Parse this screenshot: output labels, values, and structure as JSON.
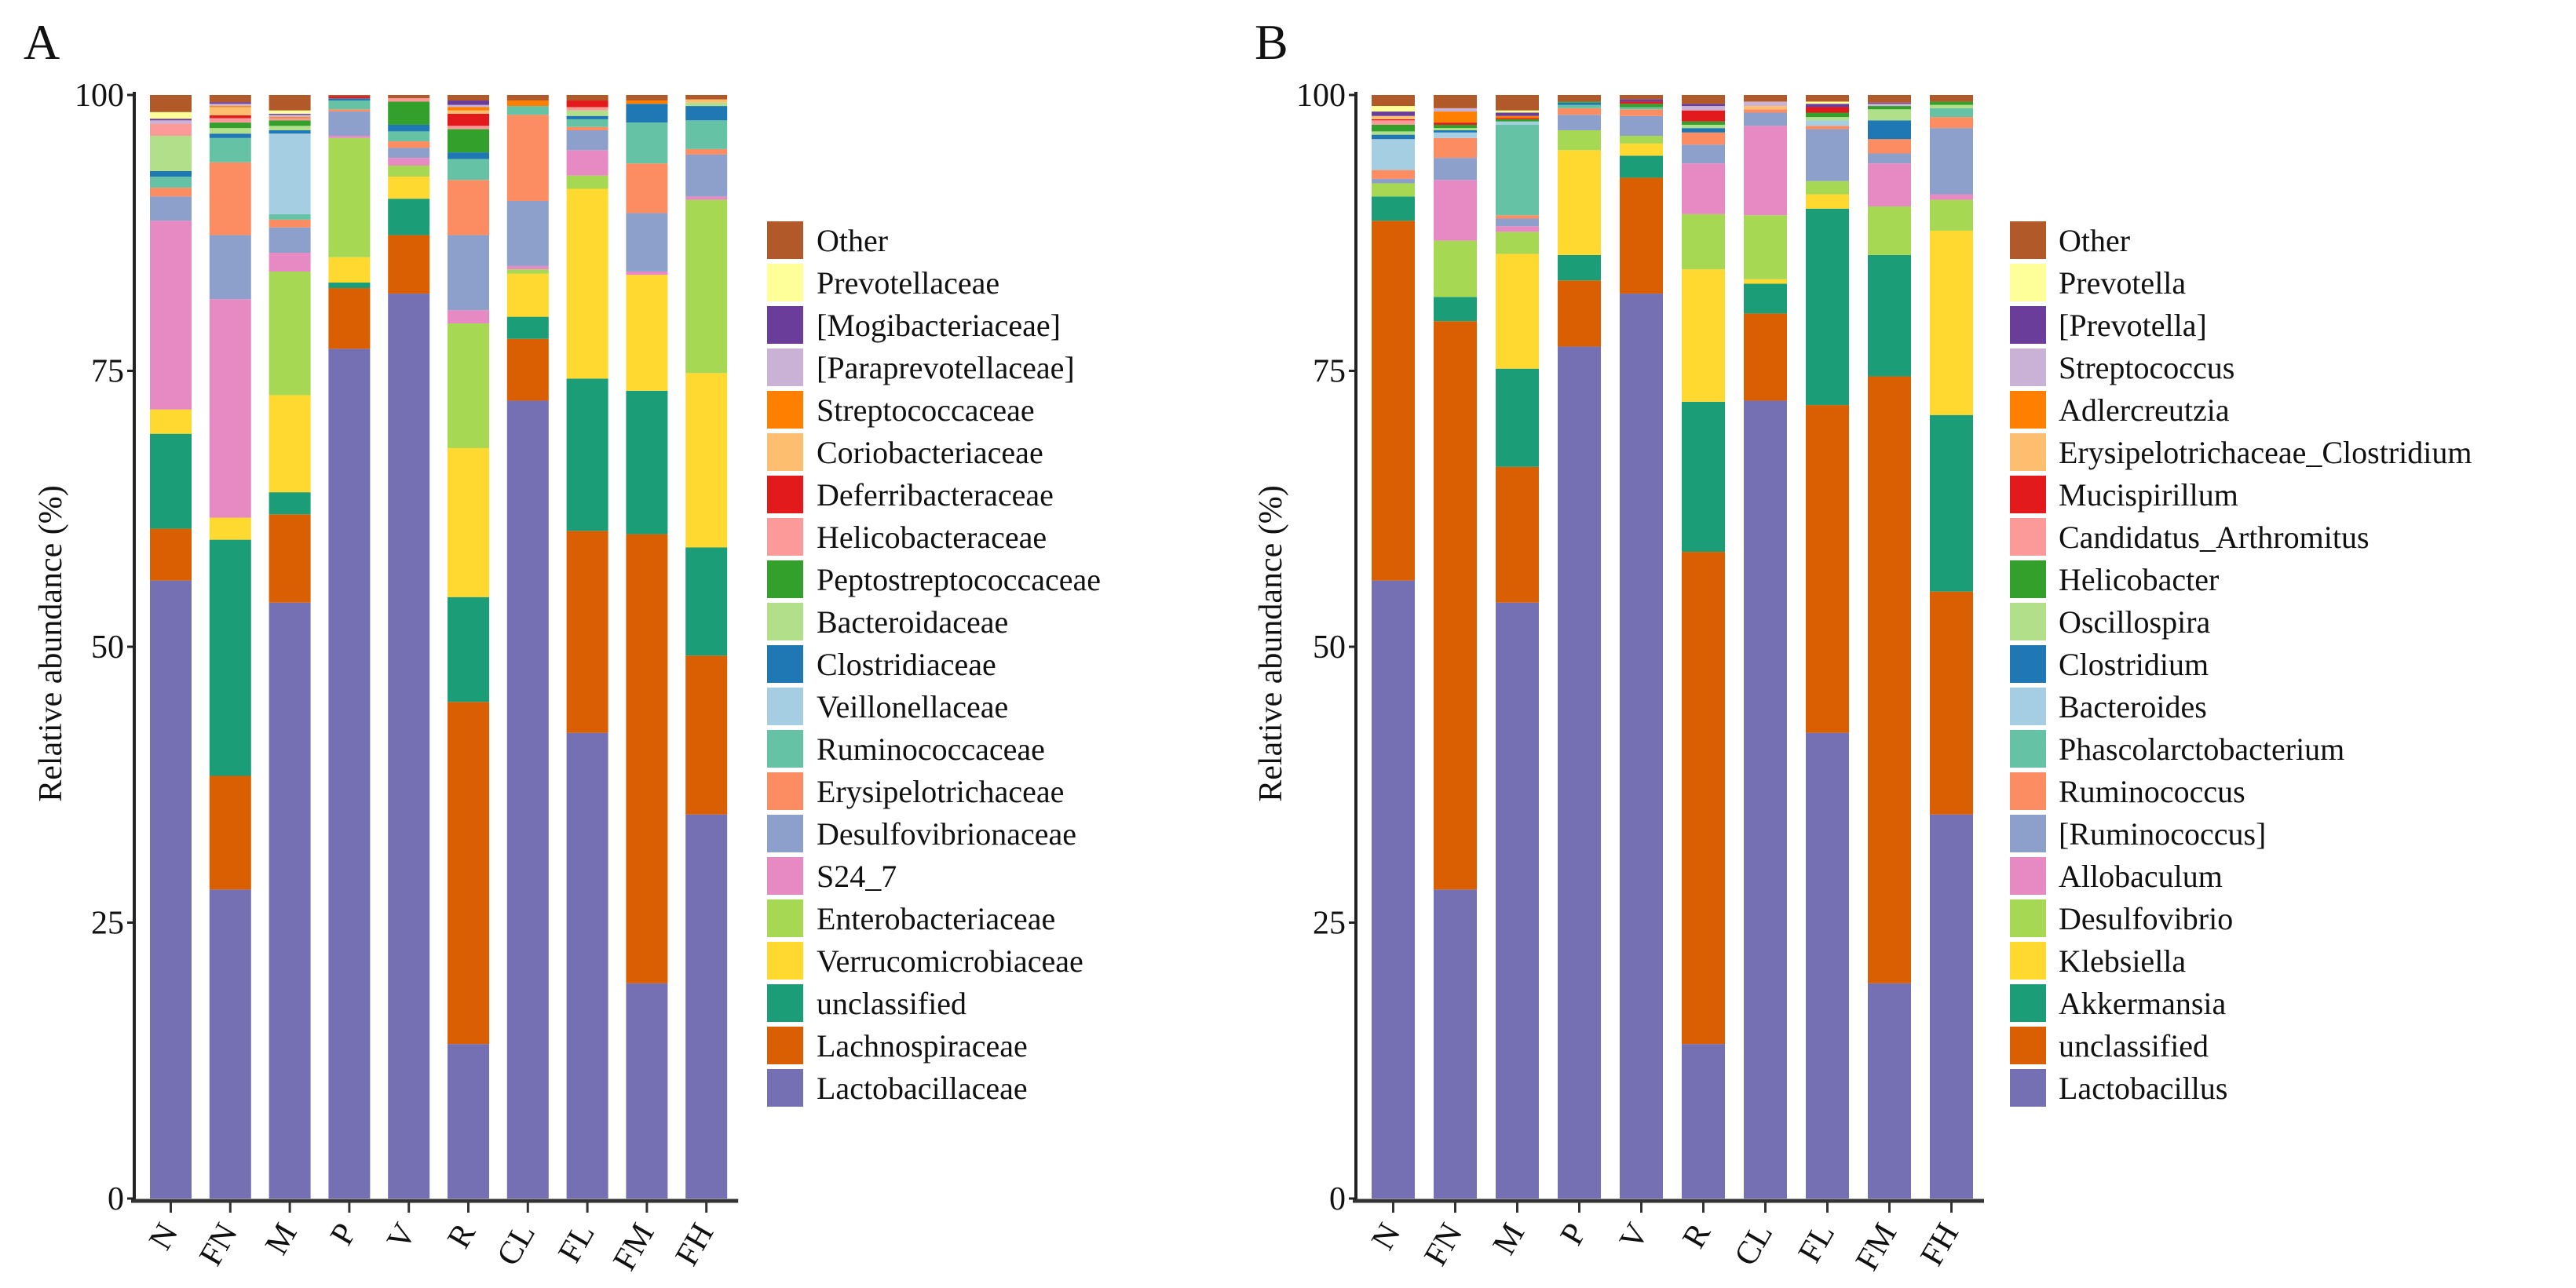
{
  "chart_data": [
    {
      "panel": "A",
      "type": "bar",
      "stacked": true,
      "ylabel": "Relative abundance (%)",
      "ylim": [
        0,
        100
      ],
      "yticks": [
        "0",
        "25",
        "50",
        "75",
        "100"
      ],
      "categories": [
        "N",
        "FN",
        "M",
        "P",
        "V",
        "R",
        "CL",
        "FL",
        "FM",
        "FH"
      ],
      "legend_position": "right",
      "series": [
        {
          "name": "Lactobacillaceae",
          "color": "#7570b3",
          "values": [
            56,
            28,
            54,
            77,
            82,
            14,
            72.3,
            42.2,
            19.5,
            34.8
          ]
        },
        {
          "name": "Lachnospiraceae",
          "color": "#d95f02",
          "values": [
            4.7,
            10.3,
            8,
            5.5,
            5.3,
            31,
            5.6,
            18.3,
            40.7,
            14.4
          ]
        },
        {
          "name": "unclassified",
          "color": "#1b9e77",
          "values": [
            8.6,
            21.4,
            2,
            0.5,
            3.3,
            9.5,
            2,
            13.8,
            13,
            9.8
          ]
        },
        {
          "name": "Verrucomicrobiaceae",
          "color": "#ffd92f",
          "values": [
            2.2,
            2,
            8.8,
            2.3,
            2,
            13.5,
            3.9,
            17.2,
            10.5,
            15.8
          ]
        },
        {
          "name": "Enterobacteriaceae",
          "color": "#a6d854",
          "values": [
            0,
            0,
            11.2,
            10.8,
            1,
            11.3,
            0.4,
            1.2,
            0,
            15.7
          ]
        },
        {
          "name": "S24_7",
          "color": "#e78ac3",
          "values": [
            17.1,
            19.8,
            1.7,
            0.2,
            0.7,
            1.2,
            0.3,
            2.3,
            0.3,
            0.3
          ]
        },
        {
          "name": "Desulfovibrionaceae",
          "color": "#8da0cb",
          "values": [
            2.2,
            5.8,
            2.3,
            2.2,
            0.9,
            6.8,
            5.9,
            1.8,
            5.3,
            3.8
          ]
        },
        {
          "name": "Erysipelotrichaceae",
          "color": "#fc8d62",
          "values": [
            0.8,
            6.6,
            0.7,
            0.2,
            0.6,
            5,
            7.8,
            0.3,
            4.5,
            0.5
          ]
        },
        {
          "name": "Ruminococcaceae",
          "color": "#66c2a5",
          "values": [
            1,
            2.2,
            0.5,
            0.8,
            0.9,
            1.9,
            0.8,
            0.7,
            3.7,
            2.6
          ]
        },
        {
          "name": "Veillonellaceae",
          "color": "#a6cee3",
          "values": [
            0,
            0,
            7.3,
            0,
            0,
            0,
            0,
            0,
            0,
            0
          ]
        },
        {
          "name": "Clostridiaceae",
          "color": "#1f78b4",
          "values": [
            0.5,
            0.4,
            0.3,
            0.2,
            0.6,
            0.6,
            0,
            0.3,
            1.7,
            1.3
          ]
        },
        {
          "name": "Bacteroidaceae",
          "color": "#b2df8a",
          "values": [
            3.2,
            0.5,
            0.4,
            0,
            0,
            0,
            0,
            0.5,
            0,
            0.3
          ]
        },
        {
          "name": "Peptostreptococcaceae",
          "color": "#33a02c",
          "values": [
            0,
            0.5,
            0.5,
            0,
            2.1,
            2.1,
            0,
            0,
            0,
            0
          ]
        },
        {
          "name": "Helicobacteraceae",
          "color": "#fb9a99",
          "values": [
            1.1,
            0.4,
            0.2,
            0,
            0.3,
            0.3,
            0,
            0.3,
            0,
            0
          ]
        },
        {
          "name": "Deferribacteraceae",
          "color": "#e31a1c",
          "values": [
            0,
            0.25,
            0,
            0.2,
            0,
            1.1,
            0,
            0.6,
            0,
            0
          ]
        },
        {
          "name": "Coriobacteriaceae",
          "color": "#fdbf6f",
          "values": [
            0,
            0.75,
            0,
            0,
            0,
            0.3,
            0,
            0,
            0,
            0.3
          ]
        },
        {
          "name": "Streptococcaceae",
          "color": "#ff7f00",
          "values": [
            0,
            0.1,
            0.1,
            0,
            0,
            0.3,
            0.5,
            0,
            0.3,
            0
          ]
        },
        {
          "name": "[Paraprevotellaceae]",
          "color": "#cab2d6",
          "values": [
            0.3,
            0.2,
            0.2,
            0,
            0,
            0.2,
            0,
            0,
            0,
            0
          ]
        },
        {
          "name": "[Mogibacteriaceae]",
          "color": "#6a3d9a",
          "values": [
            0.15,
            0.15,
            0.1,
            0,
            0,
            0.4,
            0,
            0,
            0,
            0
          ]
        },
        {
          "name": "Prevotellaceae",
          "color": "#ffff99",
          "values": [
            0.6,
            0,
            0.3,
            0,
            0,
            0,
            0,
            0,
            0,
            0
          ]
        },
        {
          "name": "Other",
          "color": "#b15928",
          "values": [
            1.55,
            0.65,
            1.4,
            0.1,
            0.3,
            0.5,
            0.5,
            0.5,
            0.5,
            0.4
          ]
        }
      ]
    },
    {
      "panel": "B",
      "type": "bar",
      "stacked": true,
      "ylabel": "Relative abundance (%)",
      "ylim": [
        0,
        100
      ],
      "yticks": [
        "0",
        "25",
        "50",
        "75",
        "100"
      ],
      "categories": [
        "N",
        "FN",
        "M",
        "P",
        "V",
        "R",
        "CL",
        "FL",
        "FM",
        "FH"
      ],
      "legend_position": "right",
      "series": [
        {
          "name": "Lactobacillus",
          "color": "#7570b3",
          "values": [
            56,
            28,
            54,
            77.2,
            82,
            14,
            72.3,
            42.2,
            19.5,
            34.8
          ]
        },
        {
          "name": "unclassified",
          "color": "#d95f02",
          "values": [
            32.6,
            51.5,
            12.3,
            6,
            10.5,
            44.6,
            7.9,
            29.7,
            55,
            20.2
          ]
        },
        {
          "name": "Akkermansia",
          "color": "#1b9e77",
          "values": [
            2.2,
            2.2,
            8.9,
            2.3,
            2,
            13.6,
            2.7,
            17.8,
            11,
            16
          ]
        },
        {
          "name": "Klebsiella",
          "color": "#ffd92f",
          "values": [
            0,
            0,
            10.4,
            9.5,
            1.1,
            12,
            0.4,
            1.3,
            0,
            16.7
          ]
        },
        {
          "name": "Desulfovibrio",
          "color": "#a6d854",
          "values": [
            1.2,
            5.1,
            2,
            1.8,
            0.7,
            5,
            5.8,
            1.2,
            4.4,
            2.8
          ]
        },
        {
          "name": "Allobaculum",
          "color": "#e78ac3",
          "values": [
            0,
            5.5,
            0.5,
            0,
            0,
            4.6,
            8.1,
            0,
            3.9,
            0.5
          ]
        },
        {
          "name": "[Ruminococcus]",
          "color": "#8da0cb",
          "values": [
            0.4,
            2,
            0.7,
            1.4,
            1.8,
            1.7,
            1.2,
            4.7,
            0.9,
            6
          ]
        },
        {
          "name": "Ruminococcus",
          "color": "#fc8d62",
          "values": [
            0.8,
            1.8,
            0.3,
            0.6,
            0.6,
            1.1,
            0.3,
            0.3,
            1.3,
            1
          ]
        },
        {
          "name": "Phascolarctobacterium",
          "color": "#66c2a5",
          "values": [
            0,
            0,
            8.2,
            0.3,
            0.2,
            0,
            0,
            0,
            0,
            0.8
          ]
        },
        {
          "name": "Bacteroides",
          "color": "#a6cee3",
          "values": [
            2.8,
            0.5,
            0.3,
            0,
            0,
            0,
            0,
            0.5,
            0,
            0
          ]
        },
        {
          "name": "Clostridium",
          "color": "#1f78b4",
          "values": [
            0.4,
            0.2,
            0,
            0.2,
            0,
            0.4,
            0,
            0,
            1.7,
            0
          ]
        },
        {
          "name": "Oscillospira",
          "color": "#b2df8a",
          "values": [
            0.3,
            0.2,
            0,
            0,
            0,
            0.3,
            0,
            0.3,
            1,
            0.3
          ]
        },
        {
          "name": "Helicobacter",
          "color": "#33a02c",
          "values": [
            0.6,
            0.3,
            0.2,
            0.1,
            0.3,
            0.3,
            0,
            0.4,
            0.3,
            0.3
          ]
        },
        {
          "name": "Candidatus_Arthromitus",
          "color": "#fb9a99",
          "values": [
            0.4,
            0,
            0,
            0,
            0,
            0,
            0,
            0,
            0,
            0
          ]
        },
        {
          "name": "Mucispirillum",
          "color": "#e31a1c",
          "values": [
            0.1,
            0.2,
            0.1,
            0,
            0.2,
            1,
            0,
            0.5,
            0,
            0
          ]
        },
        {
          "name": "Erysipelotrichaceae_Clostridium",
          "color": "#fdbf6f",
          "values": [
            0.3,
            0,
            0,
            0,
            0,
            0,
            0.3,
            0,
            0,
            0
          ]
        },
        {
          "name": "Adlercreutzia",
          "color": "#ff7f00",
          "values": [
            0,
            1,
            0.2,
            0,
            0,
            0,
            0,
            0,
            0,
            0
          ]
        },
        {
          "name": "Streptococcus",
          "color": "#cab2d6",
          "values": [
            0,
            0.3,
            0,
            0,
            0,
            0.4,
            0.4,
            0,
            0.2,
            0
          ]
        },
        {
          "name": "[Prevotella]",
          "color": "#6a3d9a",
          "values": [
            0.4,
            0,
            0.3,
            0,
            0.2,
            0.2,
            0,
            0.3,
            0.1,
            0
          ]
        },
        {
          "name": "Prevotella",
          "color": "#ffff99",
          "values": [
            0.5,
            0,
            0.2,
            0,
            0,
            0,
            0,
            0.2,
            0,
            0
          ]
        },
        {
          "name": "Other",
          "color": "#b15928",
          "values": [
            1.0,
            1.2,
            1.4,
            0.6,
            0.4,
            0.8,
            0.6,
            0.6,
            0.7,
            0.6
          ]
        }
      ]
    }
  ]
}
